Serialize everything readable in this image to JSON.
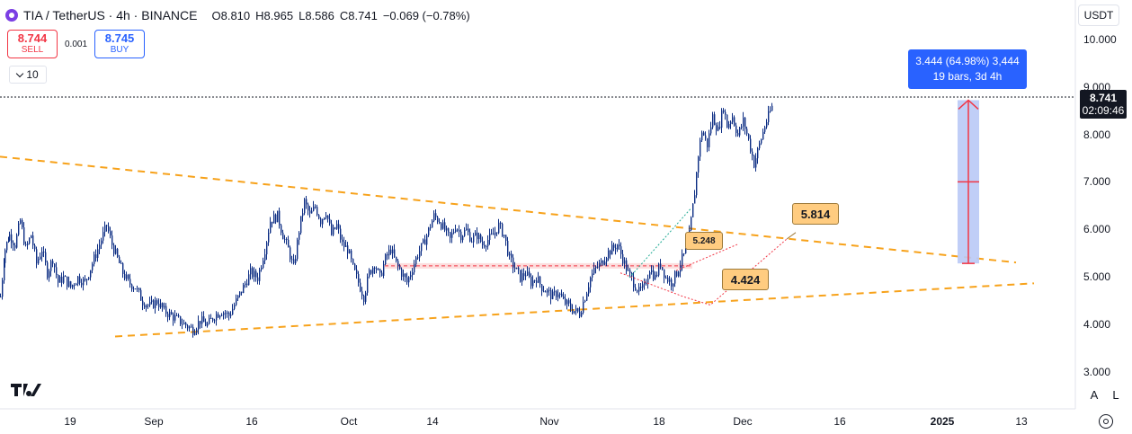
{
  "header": {
    "symbol": "TIA / TetherUS · 4h · BINANCE",
    "open_key": "O",
    "open": "8.810",
    "high_key": "H",
    "high": "8.965",
    "low_key": "L",
    "low": "8.586",
    "close_key": "C",
    "close": "8.741",
    "change": "−0.069 (−0.78%)"
  },
  "trade": {
    "sell_price": "8.744",
    "sell_label": "SELL",
    "spread": "0.001",
    "buy_price": "8.745",
    "buy_label": "BUY"
  },
  "indicator_count": "10",
  "currency": "USDT",
  "last_price": {
    "value": "8.741",
    "countdown": "02:09:46"
  },
  "measure": {
    "line1": "3.444 (64.98%) 3,444",
    "line2": "19 bars, 3d 4h"
  },
  "labels": {
    "a": "5.814",
    "b": "5.248",
    "c": "4.424"
  },
  "footer": {
    "a_button": "A",
    "l_button": "L"
  },
  "colors": {
    "candle": "#0c2d83",
    "trend": "#f7a21b",
    "measure": "#2962ff",
    "measure_fill": "#b9c9f6",
    "sell": "#f23645",
    "buy": "#2962ff"
  },
  "chart_data": {
    "type": "candlestick",
    "title": "TIA / TetherUS · 4h · BINANCE",
    "y_axis": {
      "ticks": [
        "10.000",
        "9.000",
        "8.000",
        "7.000",
        "6.000",
        "5.000",
        "4.000",
        "3.000"
      ],
      "range": [
        2.6,
        10.3
      ]
    },
    "x_axis": {
      "ticks": [
        "19",
        "Sep",
        "16",
        "Oct",
        "14",
        "Nov",
        "18",
        "Dec",
        "16",
        "2025",
        "13"
      ],
      "bold": [
        "2025"
      ]
    },
    "close_series": [
      [
        0,
        4.6
      ],
      [
        5,
        5.6
      ],
      [
        10,
        5.9
      ],
      [
        16,
        5.7
      ],
      [
        22,
        6.2
      ],
      [
        28,
        5.6
      ],
      [
        34,
        5.9
      ],
      [
        40,
        5.3
      ],
      [
        46,
        5.6
      ],
      [
        52,
        5.1
      ],
      [
        58,
        5.4
      ],
      [
        64,
        4.9
      ],
      [
        70,
        5.0
      ],
      [
        78,
        4.8
      ],
      [
        86,
        5.0
      ],
      [
        94,
        4.9
      ],
      [
        100,
        5.2
      ],
      [
        106,
        5.5
      ],
      [
        112,
        5.8
      ],
      [
        118,
        6.1
      ],
      [
        124,
        5.7
      ],
      [
        130,
        5.4
      ],
      [
        136,
        5.1
      ],
      [
        142,
        4.9
      ],
      [
        150,
        4.8
      ],
      [
        158,
        4.5
      ],
      [
        166,
        4.4
      ],
      [
        174,
        4.5
      ],
      [
        182,
        4.3
      ],
      [
        190,
        4.2
      ],
      [
        198,
        4.1
      ],
      [
        206,
        4.0
      ],
      [
        214,
        3.9
      ],
      [
        222,
        4.1
      ],
      [
        230,
        4.0
      ],
      [
        238,
        4.2
      ],
      [
        246,
        4.3
      ],
      [
        254,
        4.2
      ],
      [
        262,
        4.5
      ],
      [
        270,
        4.8
      ],
      [
        278,
        5.1
      ],
      [
        286,
        5.0
      ],
      [
        294,
        5.6
      ],
      [
        300,
        6.2
      ],
      [
        308,
        6.3
      ],
      [
        314,
        5.9
      ],
      [
        320,
        5.6
      ],
      [
        326,
        5.2
      ],
      [
        332,
        6.0
      ],
      [
        338,
        6.6
      ],
      [
        344,
        6.3
      ],
      [
        350,
        6.5
      ],
      [
        356,
        6.2
      ],
      [
        362,
        6.4
      ],
      [
        368,
        5.9
      ],
      [
        374,
        6.1
      ],
      [
        380,
        5.7
      ],
      [
        386,
        5.6
      ],
      [
        392,
        5.2
      ],
      [
        398,
        4.9
      ],
      [
        404,
        4.6
      ],
      [
        410,
        5.1
      ],
      [
        416,
        5.3
      ],
      [
        422,
        5.0
      ],
      [
        428,
        5.4
      ],
      [
        434,
        5.6
      ],
      [
        440,
        5.3
      ],
      [
        446,
        5.1
      ],
      [
        452,
        4.9
      ],
      [
        458,
        5.2
      ],
      [
        464,
        5.5
      ],
      [
        470,
        5.7
      ],
      [
        476,
        6.0
      ],
      [
        482,
        6.3
      ],
      [
        488,
        6.2
      ],
      [
        494,
        6.0
      ],
      [
        500,
        5.8
      ],
      [
        506,
        6.1
      ],
      [
        512,
        5.9
      ],
      [
        518,
        6.0
      ],
      [
        524,
        5.8
      ],
      [
        530,
        5.9
      ],
      [
        536,
        5.7
      ],
      [
        542,
        5.8
      ],
      [
        548,
        5.9
      ],
      [
        554,
        6.1
      ],
      [
        560,
        5.9
      ],
      [
        566,
        5.4
      ],
      [
        572,
        5.2
      ],
      [
        578,
        5.0
      ],
      [
        584,
        5.1
      ],
      [
        590,
        4.9
      ],
      [
        596,
        5.0
      ],
      [
        602,
        4.8
      ],
      [
        608,
        4.7
      ],
      [
        614,
        4.6
      ],
      [
        620,
        4.7
      ],
      [
        626,
        4.5
      ],
      [
        632,
        4.4
      ],
      [
        638,
        4.3
      ],
      [
        644,
        4.25
      ],
      [
        650,
        4.6
      ],
      [
        656,
        5.0
      ],
      [
        662,
        5.2
      ],
      [
        668,
        5.3
      ],
      [
        674,
        5.5
      ],
      [
        680,
        5.6
      ],
      [
        686,
        5.7
      ],
      [
        692,
        5.4
      ],
      [
        698,
        5.1
      ],
      [
        704,
        4.9
      ],
      [
        710,
        4.7
      ],
      [
        716,
        4.8
      ],
      [
        722,
        5.2
      ],
      [
        728,
        5.0
      ],
      [
        734,
        5.3
      ],
      [
        740,
        5.0
      ],
      [
        746,
        4.9
      ],
      [
        752,
        5.1
      ],
      [
        758,
        5.4
      ],
      [
        764,
        5.6
      ],
      [
        768,
        6.2
      ],
      [
        772,
        6.8
      ],
      [
        776,
        7.6
      ],
      [
        780,
        8.1
      ],
      [
        786,
        7.8
      ],
      [
        792,
        8.4
      ],
      [
        798,
        8.1
      ],
      [
        804,
        8.6
      ],
      [
        808,
        8.2
      ],
      [
        814,
        8.4
      ],
      [
        820,
        8.0
      ],
      [
        826,
        8.3
      ],
      [
        832,
        7.9
      ],
      [
        838,
        7.4
      ],
      [
        844,
        7.8
      ],
      [
        850,
        8.2
      ],
      [
        856,
        8.5
      ],
      [
        860,
        8.7
      ]
    ],
    "trendlines": [
      {
        "from": [
          "Aug",
          "7.55"
        ],
        "to": [
          "Jan 13",
          "5.32"
        ],
        "style": "dashed"
      },
      {
        "from": [
          "Aug 14",
          "3.76"
        ],
        "to": [
          "Jan 14",
          "4.88"
        ],
        "style": "dashed"
      }
    ],
    "horizontal_zone": {
      "value": 5.248,
      "color": "#f23645"
    },
    "measure_range": {
      "from": 5.3,
      "to": 8.741,
      "change": "3.444 (64.98%)",
      "bars": 19
    }
  }
}
